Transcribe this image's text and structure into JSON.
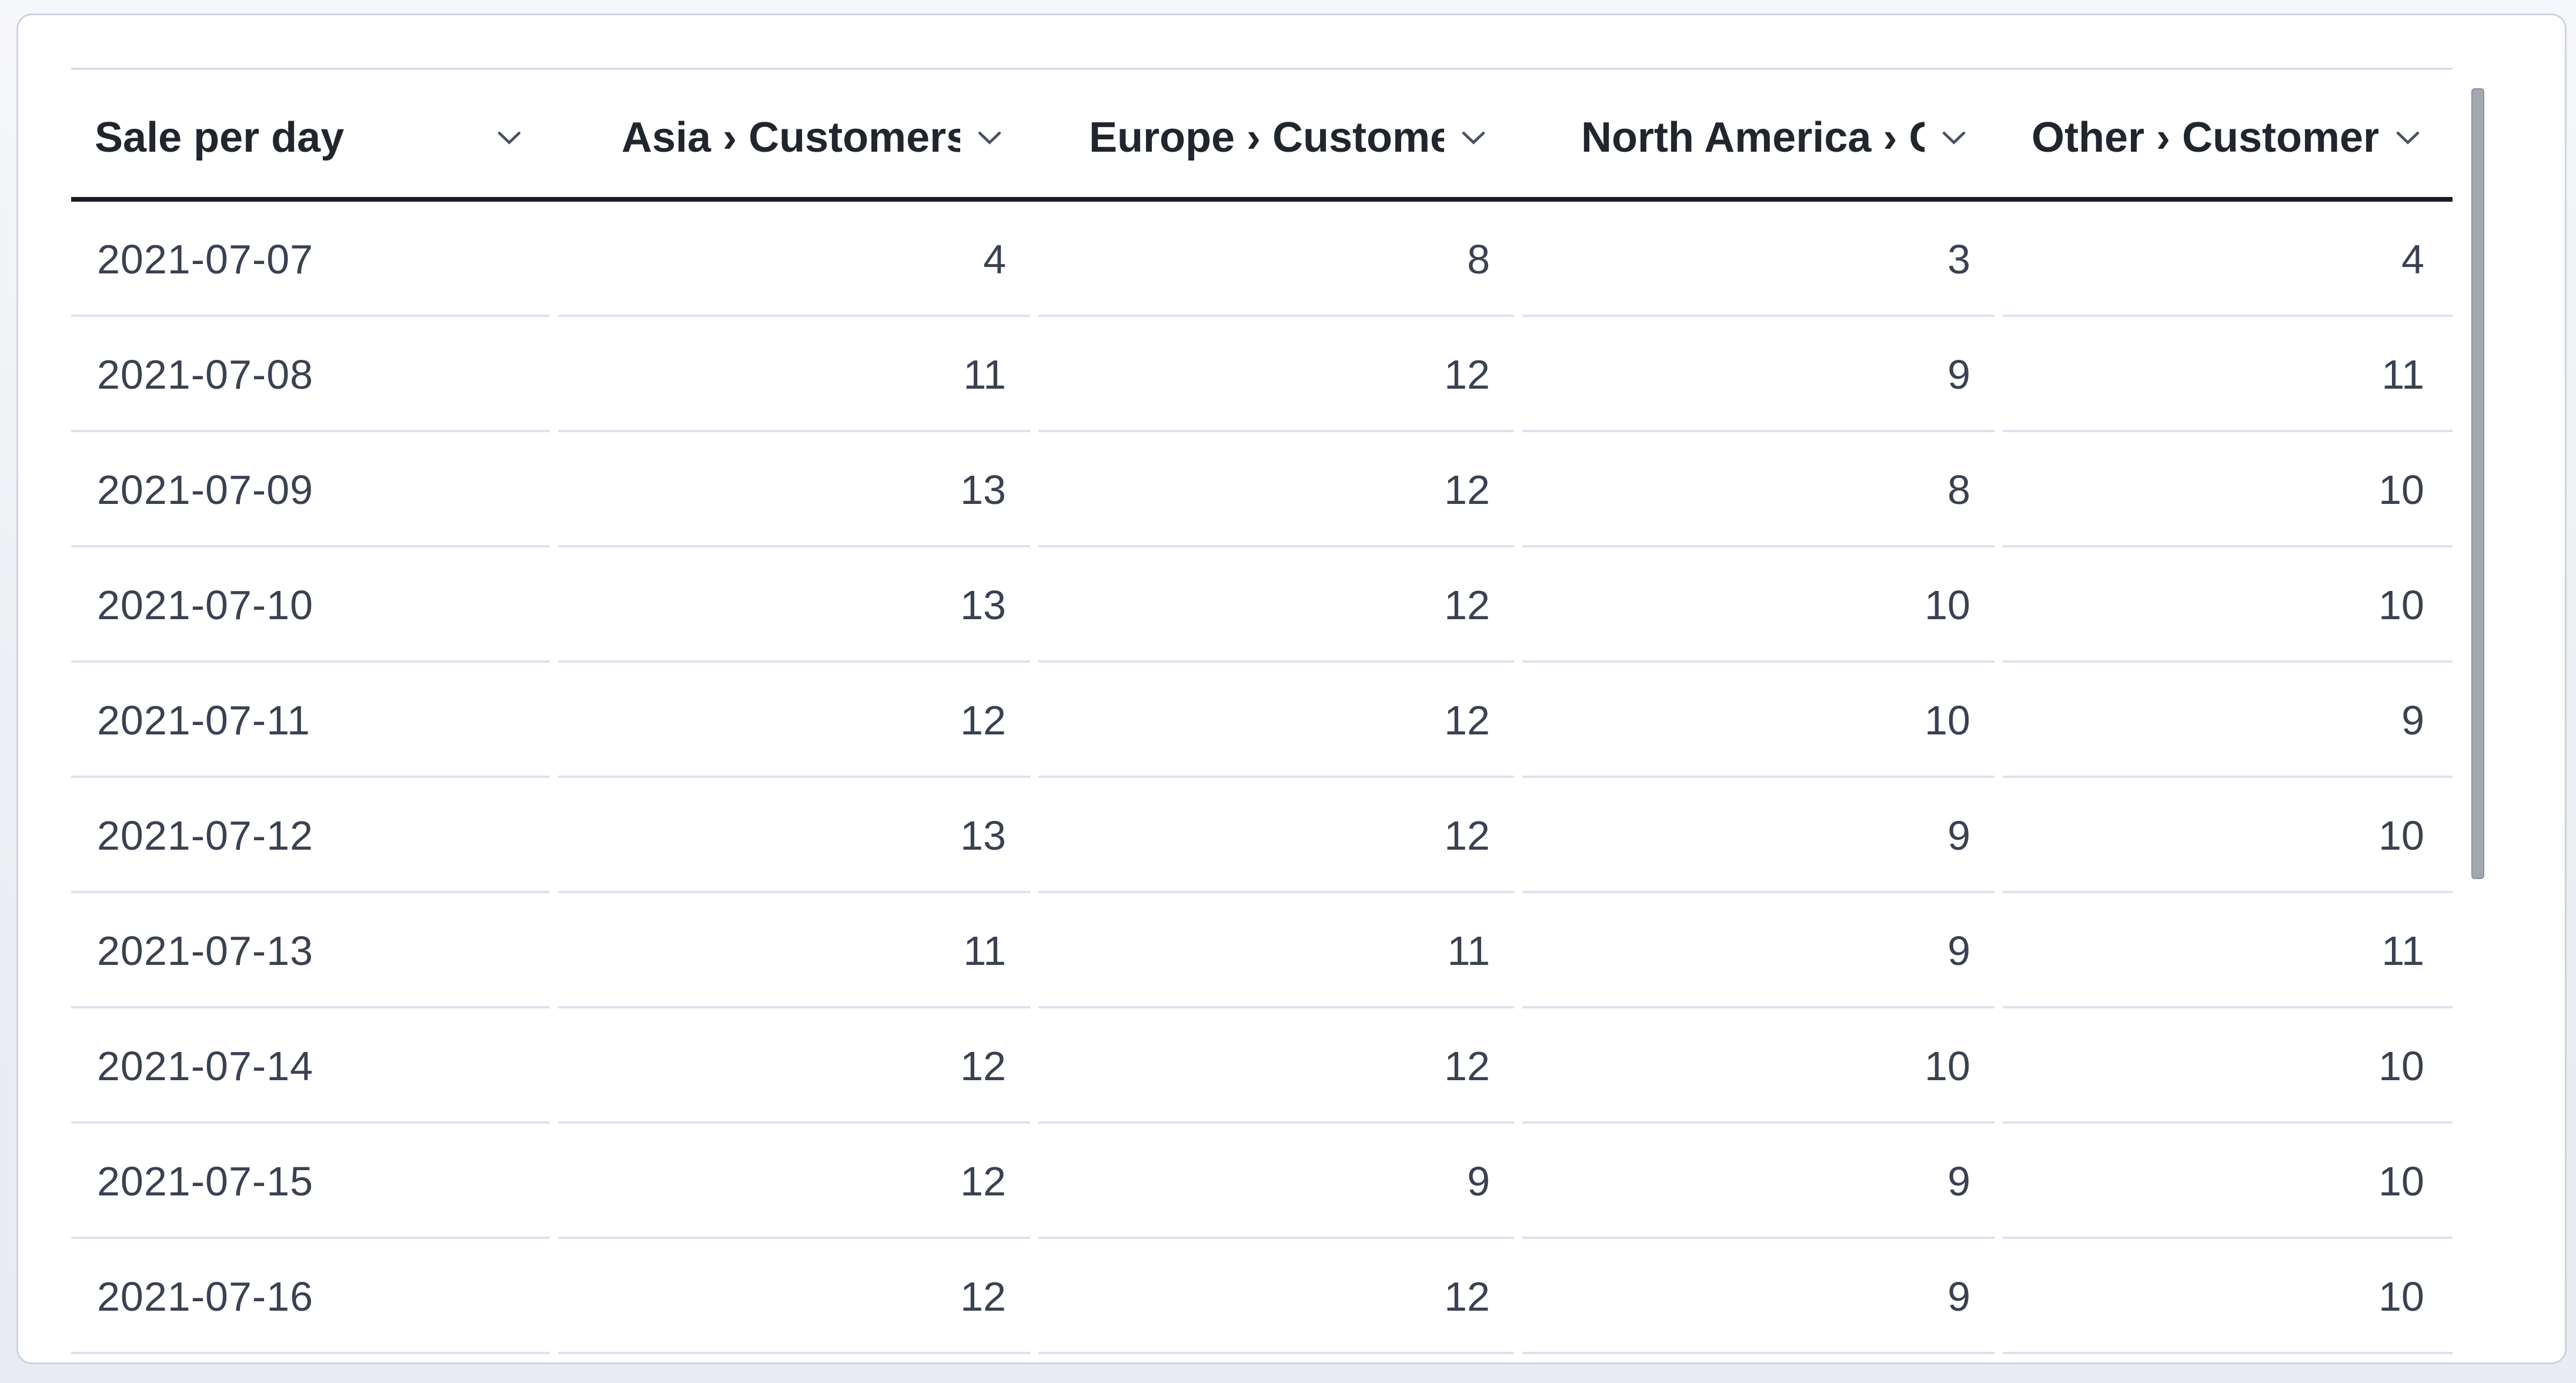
{
  "table": {
    "columns": [
      {
        "id": "sale_per_day",
        "label": "Sale per day",
        "align": "left"
      },
      {
        "id": "asia_customers",
        "label": "Asia › Customers",
        "align": "right"
      },
      {
        "id": "europe_customers",
        "label": "Europe › Customers",
        "align": "right"
      },
      {
        "id": "north_america_customers",
        "label": "North America › Customers",
        "align": "right"
      },
      {
        "id": "other_customers",
        "label": "Other › Customers",
        "align": "right"
      }
    ],
    "rows": [
      [
        "2021-07-07",
        "4",
        "8",
        "3",
        "4"
      ],
      [
        "2021-07-08",
        "11",
        "12",
        "9",
        "11"
      ],
      [
        "2021-07-09",
        "13",
        "12",
        "8",
        "10"
      ],
      [
        "2021-07-10",
        "13",
        "12",
        "10",
        "10"
      ],
      [
        "2021-07-11",
        "12",
        "12",
        "10",
        "9"
      ],
      [
        "2021-07-12",
        "13",
        "12",
        "9",
        "10"
      ],
      [
        "2021-07-13",
        "11",
        "11",
        "9",
        "11"
      ],
      [
        "2021-07-14",
        "12",
        "12",
        "10",
        "10"
      ],
      [
        "2021-07-15",
        "12",
        "9",
        "9",
        "10"
      ],
      [
        "2021-07-16",
        "12",
        "12",
        "9",
        "10"
      ]
    ],
    "sort_icon": "chevron-down",
    "colors": {
      "header_text": "#20252e",
      "body_text": "#3a4150",
      "row_separator": "#dde3ed",
      "header_underline": "#1a1d24",
      "table_top_border": "#d8dde8",
      "card_border": "#ccd4e1",
      "scrollbar_thumb": "#a3a8b0"
    },
    "scrollbar_visible": true
  }
}
